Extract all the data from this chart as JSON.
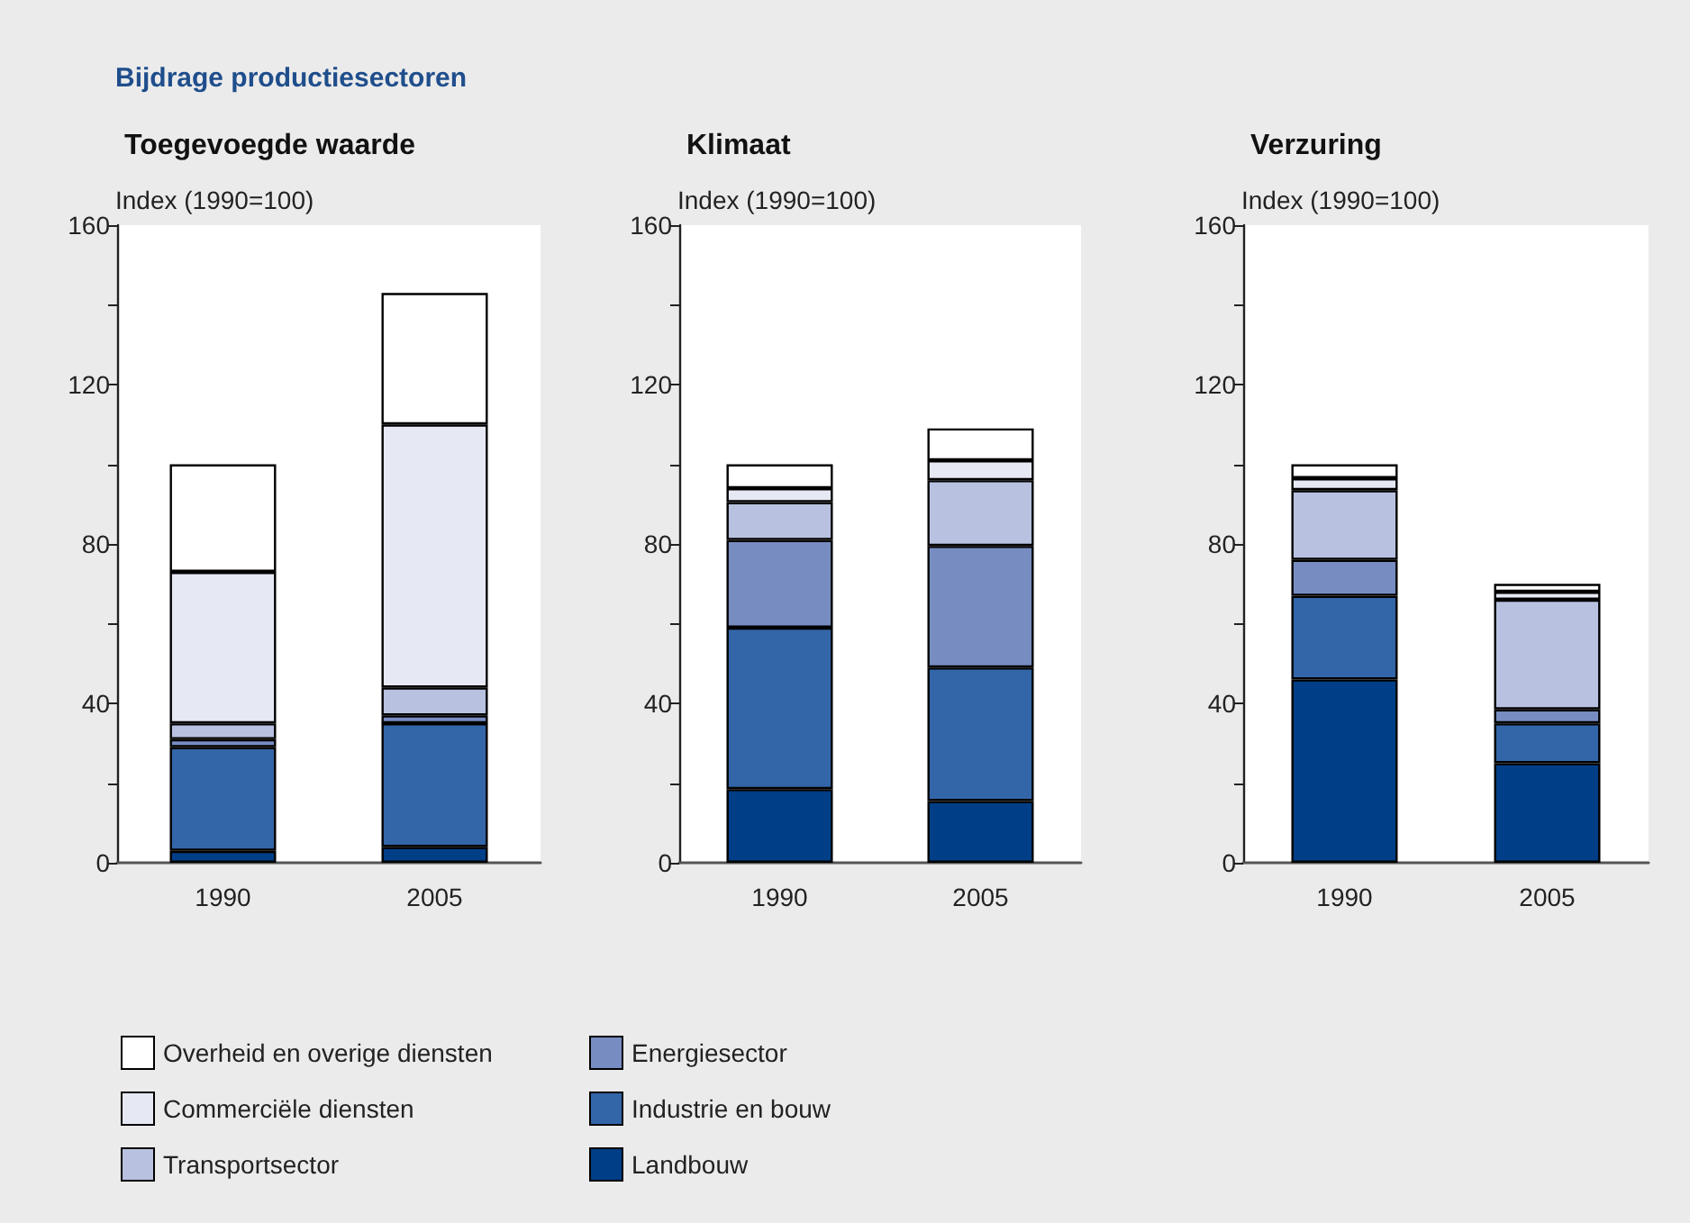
{
  "chart_data": [
    {
      "type": "bar",
      "stacked": true,
      "title": "Toegevoegde waarde",
      "ylabel": "Index (1990=100)",
      "annotations": [
        "Bijdrage productiesectoren"
      ],
      "categories": [
        "1990",
        "2005"
      ],
      "ylim": [
        0,
        160
      ],
      "yticks": [
        0,
        {
          "value": 20,
          "label": null
        },
        40,
        {
          "value": 60,
          "label": null
        },
        80,
        {
          "value": 100,
          "label": null
        },
        120,
        {
          "value": 140,
          "label": null
        },
        160
      ],
      "legend": "bottom",
      "grid": false,
      "series": [
        {
          "name": "Landbouw",
          "color": "#003f87",
          "values": [
            3,
            4
          ]
        },
        {
          "name": "Industrie en bouw",
          "color": "#3366a8",
          "values": [
            26,
            31
          ]
        },
        {
          "name": "Energiesector",
          "color": "#778dc2",
          "values": [
            2,
            2
          ]
        },
        {
          "name": "Transportsector",
          "color": "#b8c1df",
          "values": [
            4,
            7
          ]
        },
        {
          "name": "Commerciële diensten",
          "color": "#e6e9f4",
          "values": [
            38,
            66
          ]
        },
        {
          "name": "Overheid en overige diensten",
          "color": "#ffffff",
          "values": [
            27,
            33
          ]
        }
      ]
    },
    {
      "type": "bar",
      "stacked": true,
      "title": "Klimaat",
      "ylabel": "Index (1990=100)",
      "categories": [
        "1990",
        "2005"
      ],
      "ylim": [
        0,
        160
      ],
      "yticks": [
        0,
        {
          "value": 20,
          "label": null
        },
        40,
        {
          "value": 60,
          "label": null
        },
        80,
        {
          "value": 100,
          "label": null
        },
        120,
        {
          "value": 140,
          "label": null
        },
        160
      ],
      "grid": false,
      "series": [
        {
          "color": "#003f87",
          "values": [
            18.5,
            15.5
          ]
        },
        {
          "color": "#3366a8",
          "values": [
            40.5,
            33.5
          ]
        },
        {
          "color": "#778dc2",
          "values": [
            22,
            30.5
          ]
        },
        {
          "color": "#b8c1df",
          "values": [
            9.5,
            16.5
          ]
        },
        {
          "color": "#e6e9f4",
          "values": [
            3.5,
            5
          ]
        },
        {
          "color": "#ffffff",
          "values": [
            6,
            8
          ]
        }
      ]
    },
    {
      "type": "bar",
      "stacked": true,
      "title": "Verzuring",
      "ylabel": "Index (1990=100)",
      "categories": [
        "1990",
        "2005"
      ],
      "ylim": [
        0,
        160
      ],
      "yticks": [
        0,
        {
          "value": 20,
          "label": null
        },
        40,
        {
          "value": 60,
          "label": null
        },
        80,
        {
          "value": 100,
          "label": null
        },
        120,
        {
          "value": 140,
          "label": null
        },
        160
      ],
      "grid": false,
      "series": [
        {
          "color": "#003f87",
          "values": [
            46,
            25
          ]
        },
        {
          "color": "#3366a8",
          "values": [
            21,
            10
          ]
        },
        {
          "color": "#778dc2",
          "values": [
            9,
            3.5
          ]
        },
        {
          "color": "#b8c1df",
          "values": [
            17.5,
            27.5
          ]
        },
        {
          "color": "#e6e9f4",
          "values": [
            3,
            2
          ]
        },
        {
          "color": "#ffffff",
          "values": [
            3.5,
            2
          ]
        }
      ]
    }
  ]
}
